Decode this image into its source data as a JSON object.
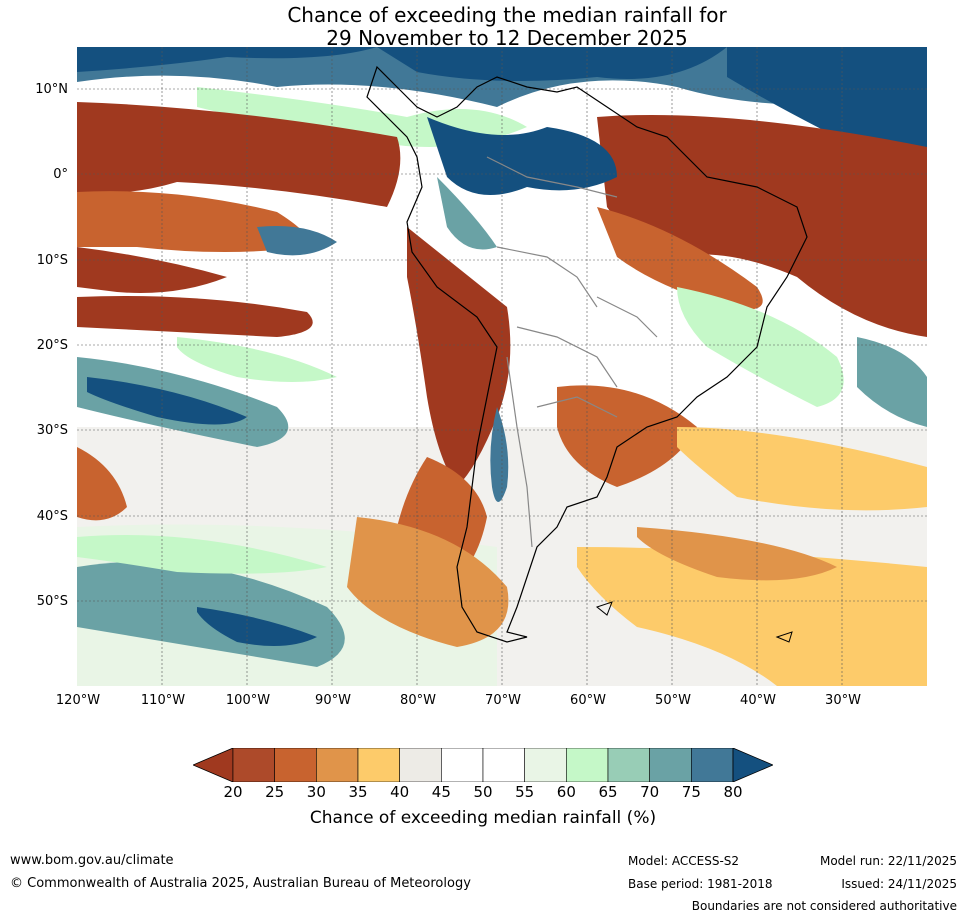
{
  "title": {
    "line1": "Chance of exceeding the median rainfall for",
    "line2": "29 November to 12 December 2025"
  },
  "map": {
    "lat_labels": [
      "10°N",
      "0°",
      "10°S",
      "20°S",
      "30°S",
      "40°S",
      "50°S"
    ],
    "lon_labels": [
      "120°W",
      "110°W",
      "100°W",
      "90°W",
      "80°W",
      "70°W",
      "60°W",
      "50°W",
      "40°W",
      "30°W"
    ],
    "lat_range": [
      -60,
      15
    ],
    "lon_range": [
      -120,
      -20
    ],
    "gridlines": true
  },
  "legend": {
    "ticks": [
      "20",
      "25",
      "30",
      "35",
      "40",
      "45",
      "50",
      "55",
      "60",
      "65",
      "70",
      "75",
      "80"
    ],
    "colors": [
      "#a0391f",
      "#ad4a2a",
      "#c8632f",
      "#e0944a",
      "#fdcb6a",
      "#edebe6",
      "#ffffff",
      "#ffffff",
      "#e9f5e6",
      "#c5f8c8",
      "#98cdb6",
      "#6aa2a5",
      "#417897",
      "#14507f"
    ],
    "label": "Chance of exceeding median rainfall (%)"
  },
  "footer": {
    "website": "www.bom.gov.au/climate",
    "copyright": "© Commonwealth of Australia 2025, Australian Bureau of Meteorology",
    "model": "Model: ACCESS-S2",
    "base_period": "Base period: 1981-2018",
    "model_run": "Model run: 22/11/2025",
    "issued": "Issued: 24/11/2025",
    "disclaimer": "Boundaries are not considered authoritative"
  }
}
